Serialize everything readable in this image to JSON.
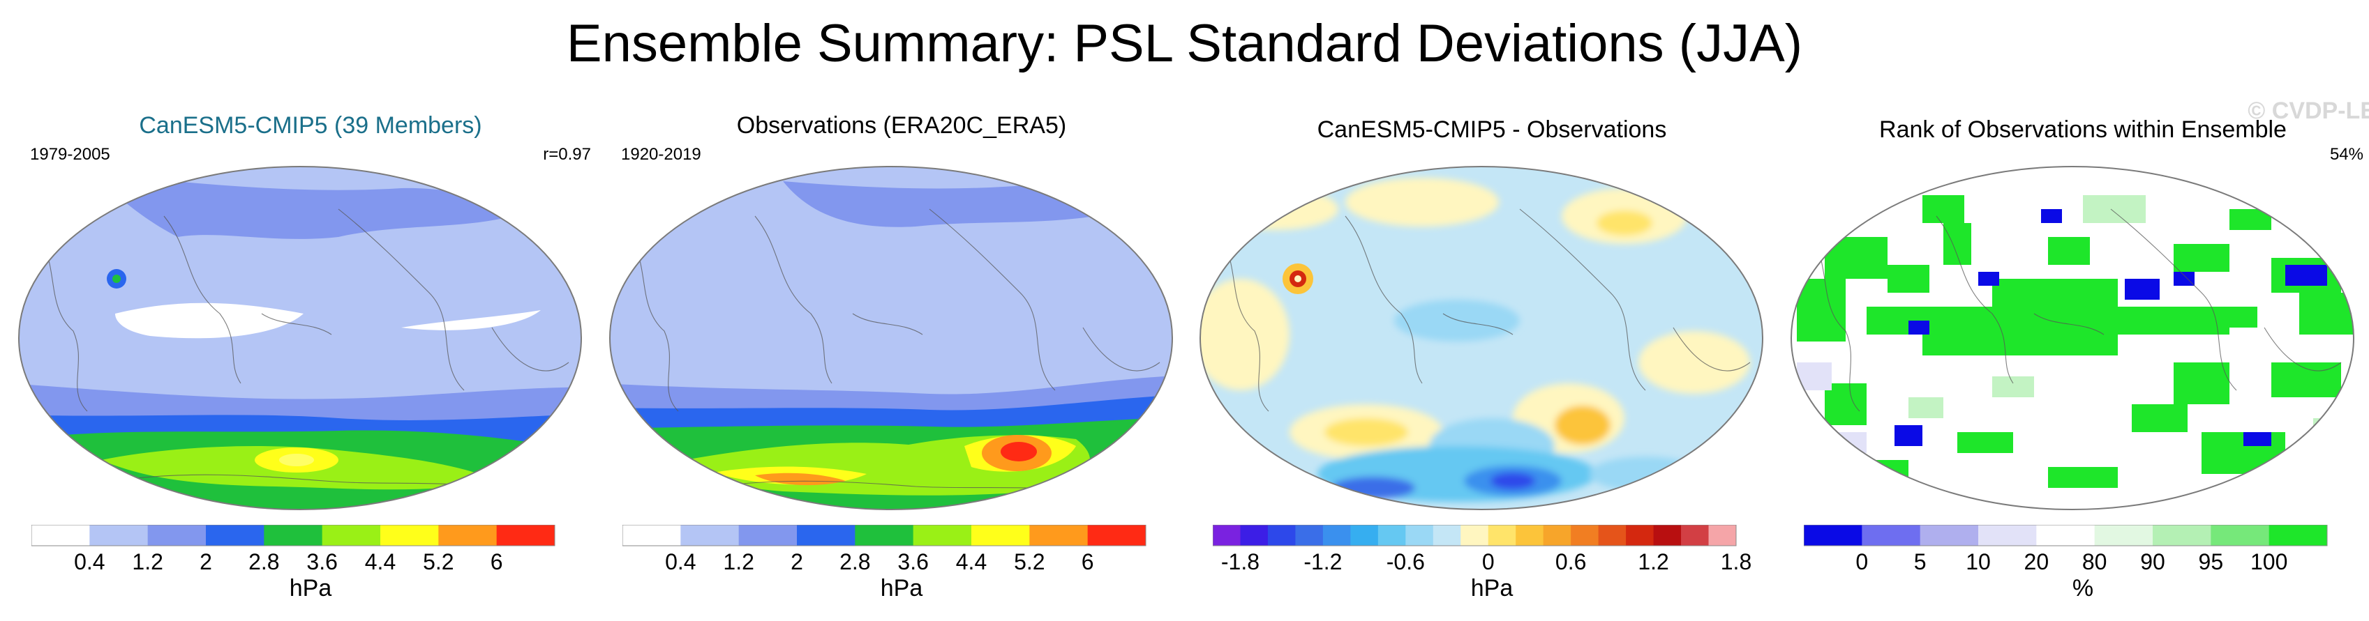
{
  "title": "Ensemble Summary: PSL Standard Deviations (JJA)",
  "watermark": "© CVDP-LE",
  "colors": {
    "title_link": "#1a6f8a",
    "map_outline": "#7a7a7a",
    "coast": "#555555"
  },
  "panels": [
    {
      "title": "CanESM5-CMIP5 (39 Members)",
      "left_text": "1979-2005",
      "right_text": "r=0.97",
      "unit": "hPa",
      "colorbar": {
        "colors": [
          "#ffffff",
          "#b4c5f5",
          "#8297ee",
          "#2a66ee",
          "#1fc03c",
          "#9af016",
          "#ffff1a",
          "#ff9a1c",
          "#ff2a14"
        ],
        "ticks": [
          "0.4",
          "1.2",
          "2",
          "2.8",
          "3.6",
          "4.4",
          "5.2",
          "6"
        ]
      }
    },
    {
      "title": "Observations (ERA20C_ERA5)",
      "left_text": "1920-2019",
      "right_text": "",
      "unit": "hPa",
      "colorbar": {
        "colors": [
          "#ffffff",
          "#b4c5f5",
          "#8297ee",
          "#2a66ee",
          "#1fc03c",
          "#9af016",
          "#ffff1a",
          "#ff9a1c",
          "#ff2a14"
        ],
        "ticks": [
          "0.4",
          "1.2",
          "2",
          "2.8",
          "3.6",
          "4.4",
          "5.2",
          "6"
        ]
      }
    },
    {
      "title": "CanESM5-CMIP5 - Observations",
      "left_text": "",
      "right_text": "",
      "unit": "hPa",
      "colorbar": {
        "colors": [
          "#7a22e0",
          "#3c1ee6",
          "#2d48ea",
          "#3a6ee8",
          "#3a90ee",
          "#36aef0",
          "#65c8f2",
          "#9ad8f5",
          "#c4e6f6",
          "#fff6c0",
          "#ffe46a",
          "#fcc43a",
          "#f7a52a",
          "#f17e22",
          "#e5541a",
          "#d4280f",
          "#b80f10",
          "#d23f44",
          "#f5a5a8"
        ],
        "ticks": [
          "-1.8",
          "-1.2",
          "-0.6",
          "0",
          "0.6",
          "1.2",
          "1.8"
        ]
      }
    },
    {
      "title": "Rank of Observations within Ensemble",
      "left_text": "",
      "right_text": "54%",
      "unit": "%",
      "colorbar": {
        "colors": [
          "#0a0ae6",
          "#6e6ef0",
          "#afafee",
          "#e2e2f8",
          "#ffffff",
          "#e2f8e2",
          "#b4f0b4",
          "#76e87a",
          "#1ee62a"
        ],
        "ticks": [
          "0",
          "5",
          "10",
          "20",
          "80",
          "90",
          "95",
          "100"
        ]
      }
    }
  ]
}
